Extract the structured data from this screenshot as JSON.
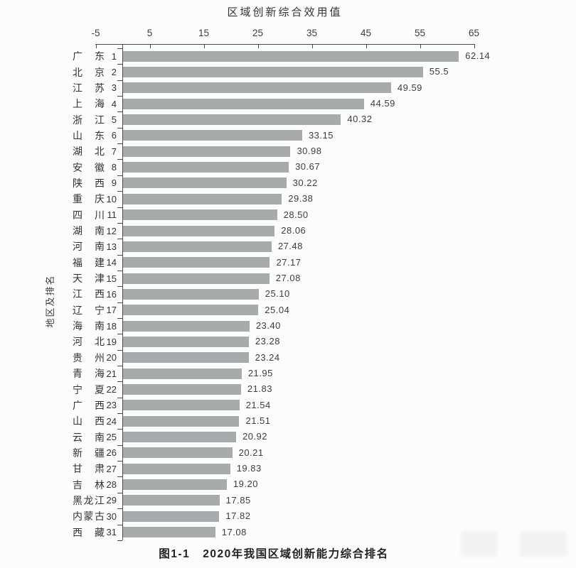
{
  "chart_data": {
    "type": "bar",
    "orientation": "horizontal",
    "title": "区域创新综合效用值",
    "xlabel": "区域创新综合效用值",
    "ylabel": "地区及排名",
    "caption_prefix": "图1-1",
    "caption_text": "2020年我国区域创新能力综合排名",
    "caption": "图1-1  2020年我国区域创新能力综合排名",
    "xlim": [
      -5,
      65
    ],
    "x_ticks": [
      -5,
      5,
      15,
      25,
      35,
      45,
      55,
      65
    ],
    "x_axis_position": "top",
    "grid": false,
    "legend": "none",
    "bar_color": "#a8abab",
    "categories": [
      "广东 1",
      "北京 2",
      "江苏 3",
      "上海 4",
      "浙江 5",
      "山东 6",
      "湖北 7",
      "安徽 8",
      "陕西 9",
      "重庆 10",
      "四川 11",
      "湖南 12",
      "河南 13",
      "福建 14",
      "天津 15",
      "江西 16",
      "辽宁 17",
      "海南 18",
      "河北 19",
      "贵州 20",
      "青海 21",
      "宁夏 22",
      "广西 23",
      "山西 24",
      "云南 25",
      "新疆 26",
      "甘肃 27",
      "吉林 28",
      "黑龙江 29",
      "内蒙古 30",
      "西藏 31"
    ],
    "rows": [
      {
        "region": "广东",
        "rank": "1",
        "value": 62.14,
        "label": "62.14"
      },
      {
        "region": "北京",
        "rank": "2",
        "value": 55.5,
        "label": "55.5"
      },
      {
        "region": "江苏",
        "rank": "3",
        "value": 49.59,
        "label": "49.59"
      },
      {
        "region": "上海",
        "rank": "4",
        "value": 44.59,
        "label": "44.59"
      },
      {
        "region": "浙江",
        "rank": "5",
        "value": 40.32,
        "label": "40.32"
      },
      {
        "region": "山东",
        "rank": "6",
        "value": 33.15,
        "label": "33.15"
      },
      {
        "region": "湖北",
        "rank": "7",
        "value": 30.98,
        "label": "30.98"
      },
      {
        "region": "安徽",
        "rank": "8",
        "value": 30.67,
        "label": "30.67"
      },
      {
        "region": "陕西",
        "rank": "9",
        "value": 30.22,
        "label": "30.22"
      },
      {
        "region": "重庆",
        "rank": "10",
        "value": 29.38,
        "label": "29.38"
      },
      {
        "region": "四川",
        "rank": "11",
        "value": 28.5,
        "label": "28.50"
      },
      {
        "region": "湖南",
        "rank": "12",
        "value": 28.06,
        "label": "28.06"
      },
      {
        "region": "河南",
        "rank": "13",
        "value": 27.48,
        "label": "27.48"
      },
      {
        "region": "福建",
        "rank": "14",
        "value": 27.17,
        "label": "27.17"
      },
      {
        "region": "天津",
        "rank": "15",
        "value": 27.08,
        "label": "27.08"
      },
      {
        "region": "江西",
        "rank": "16",
        "value": 25.1,
        "label": "25.10"
      },
      {
        "region": "辽宁",
        "rank": "17",
        "value": 25.04,
        "label": "25.04"
      },
      {
        "region": "海南",
        "rank": "18",
        "value": 23.4,
        "label": "23.40"
      },
      {
        "region": "河北",
        "rank": "19",
        "value": 23.28,
        "label": "23.28"
      },
      {
        "region": "贵州",
        "rank": "20",
        "value": 23.24,
        "label": "23.24"
      },
      {
        "region": "青海",
        "rank": "21",
        "value": 21.95,
        "label": "21.95"
      },
      {
        "region": "宁夏",
        "rank": "22",
        "value": 21.83,
        "label": "21.83"
      },
      {
        "region": "广西",
        "rank": "23",
        "value": 21.54,
        "label": "21.54"
      },
      {
        "region": "山西",
        "rank": "24",
        "value": 21.51,
        "label": "21.51"
      },
      {
        "region": "云南",
        "rank": "25",
        "value": 20.92,
        "label": "20.92"
      },
      {
        "region": "新疆",
        "rank": "26",
        "value": 20.21,
        "label": "20.21"
      },
      {
        "region": "甘肃",
        "rank": "27",
        "value": 19.83,
        "label": "19.83"
      },
      {
        "region": "吉林",
        "rank": "28",
        "value": 19.2,
        "label": "19.20"
      },
      {
        "region": "黑龙江",
        "rank": "29",
        "value": 17.85,
        "label": "17.85"
      },
      {
        "region": "内蒙古",
        "rank": "30",
        "value": 17.82,
        "label": "17.82"
      },
      {
        "region": "西藏",
        "rank": "31",
        "value": 17.08,
        "label": "17.08"
      }
    ]
  }
}
